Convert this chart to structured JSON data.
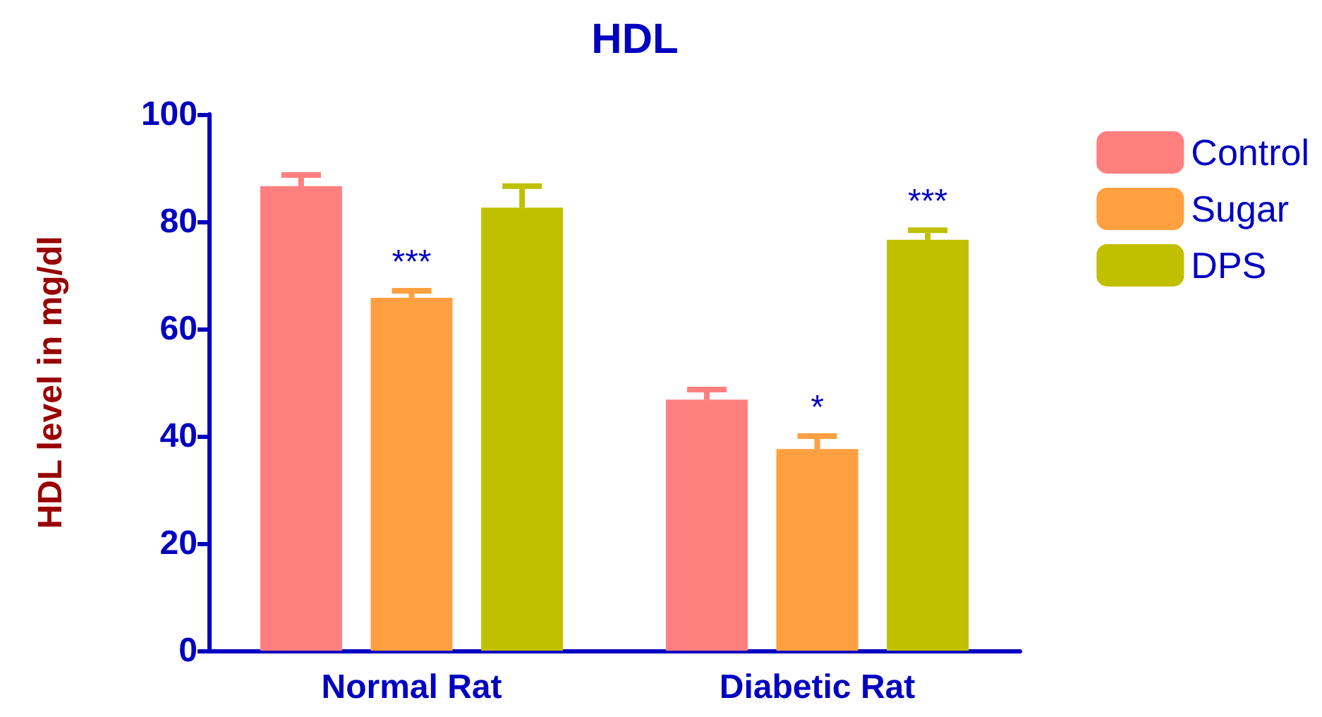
{
  "chart_data": {
    "type": "bar",
    "title": "HDL",
    "ylabel": "HDL level in mg/dl",
    "categories": [
      "Normal Rat",
      "Diabetic Rat"
    ],
    "series": [
      {
        "name": "Control",
        "color": "#ff7f7f",
        "values": [
          86.6,
          46.8
        ],
        "errors": [
          2.1,
          1.9
        ]
      },
      {
        "name": "Sugar",
        "color": "#ffa040",
        "values": [
          65.8,
          37.6
        ],
        "errors": [
          1.3,
          2.4
        ],
        "value_labels": [
          "***",
          "*"
        ]
      },
      {
        "name": "DPS",
        "color": "#c0c000",
        "values": [
          82.6,
          76.6
        ],
        "errors": [
          4,
          1.8
        ],
        "value_labels": [
          null,
          "***"
        ]
      }
    ],
    "ylim": [
      0,
      100
    ],
    "yticks": [
      0,
      20,
      40,
      60,
      80,
      100
    ],
    "grid": false,
    "legend": "top right"
  }
}
